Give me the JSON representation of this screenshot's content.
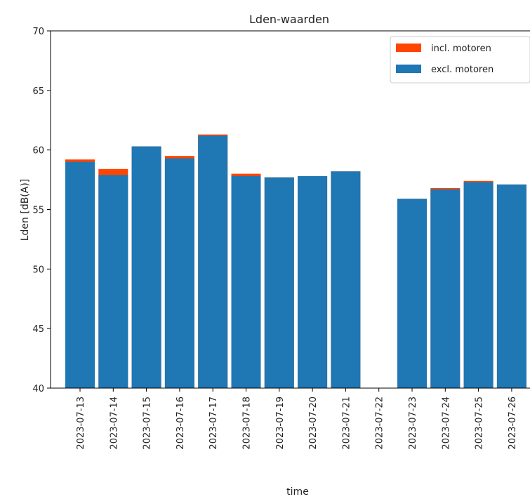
{
  "chart_data": {
    "type": "bar",
    "title": "Lden-waarden",
    "xlabel": "time",
    "ylabel": "Lden [dB(A)]",
    "ylim": [
      40,
      70
    ],
    "yticks": [
      40,
      45,
      50,
      55,
      60,
      65,
      70
    ],
    "grid": false,
    "legend_position": "top-right",
    "categories": [
      "2023-07-13",
      "2023-07-14",
      "2023-07-15",
      "2023-07-16",
      "2023-07-17",
      "2023-07-18",
      "2023-07-19",
      "2023-07-20",
      "2023-07-21",
      "2023-07-22",
      "2023-07-23",
      "2023-07-24",
      "2023-07-25",
      "2023-07-26"
    ],
    "series": [
      {
        "name": "incl. motoren",
        "color": "#ff4500",
        "values": [
          59.2,
          58.4,
          60.3,
          59.5,
          61.3,
          58.0,
          57.7,
          57.8,
          58.2,
          null,
          55.9,
          56.8,
          57.4,
          57.1
        ]
      },
      {
        "name": "excl. motoren",
        "color": "#1f77b4",
        "values": [
          59.0,
          57.9,
          60.3,
          59.3,
          61.2,
          57.8,
          57.7,
          57.8,
          58.2,
          null,
          55.9,
          56.7,
          57.3,
          57.1
        ]
      }
    ]
  }
}
